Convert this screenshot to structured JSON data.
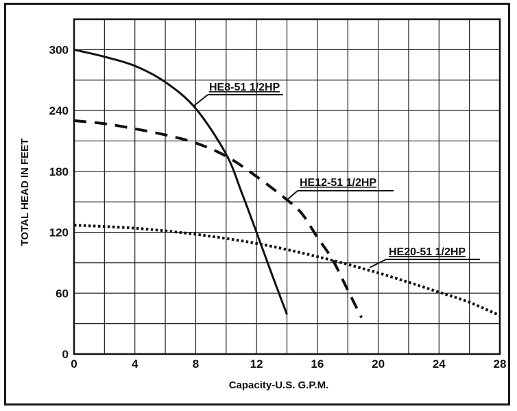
{
  "chart_data": {
    "type": "line",
    "title": "",
    "xlabel": "Capacity-U.S. G.P.M.",
    "ylabel": "TOTAL HEAD IN FEET",
    "xlim": [
      0,
      28
    ],
    "ylim": [
      0,
      330
    ],
    "x_ticks": [
      0,
      4,
      8,
      12,
      16,
      20,
      24,
      28
    ],
    "y_ticks": [
      0,
      60,
      120,
      180,
      240,
      300
    ],
    "grid": true,
    "legend": "inline labels",
    "series": [
      {
        "name": "HE8-51 1/2HP",
        "style": "solid",
        "points": [
          [
            0,
            300
          ],
          [
            2,
            293
          ],
          [
            4,
            284
          ],
          [
            6,
            268
          ],
          [
            8,
            242
          ],
          [
            10,
            197
          ],
          [
            11,
            160
          ],
          [
            12,
            120
          ],
          [
            13,
            79
          ],
          [
            14,
            39
          ]
        ]
      },
      {
        "name": "HE12-51 1/2HP",
        "style": "dashed",
        "points": [
          [
            0,
            230
          ],
          [
            2,
            227
          ],
          [
            4,
            222
          ],
          [
            6,
            216
          ],
          [
            8,
            208
          ],
          [
            10,
            195
          ],
          [
            12,
            175
          ],
          [
            14,
            152
          ],
          [
            15,
            138
          ],
          [
            16,
            115
          ],
          [
            17,
            93
          ],
          [
            18,
            63
          ],
          [
            18.9,
            36
          ]
        ]
      },
      {
        "name": "HE20-51 1/2HP",
        "style": "dotted",
        "points": [
          [
            0,
            127
          ],
          [
            4,
            124
          ],
          [
            8,
            118
          ],
          [
            12,
            109
          ],
          [
            16,
            96
          ],
          [
            20,
            80
          ],
          [
            24,
            61
          ],
          [
            26,
            51
          ],
          [
            28,
            38
          ]
        ]
      }
    ],
    "labels": [
      {
        "series": "HE8-51 1/2HP",
        "text": "HE8-51 1/2HP"
      },
      {
        "series": "HE12-51 1/2HP",
        "text": "HE12-51 1/2HP"
      },
      {
        "series": "HE20-51 1/2HP",
        "text": "HE20-51 1/2HP"
      }
    ]
  }
}
